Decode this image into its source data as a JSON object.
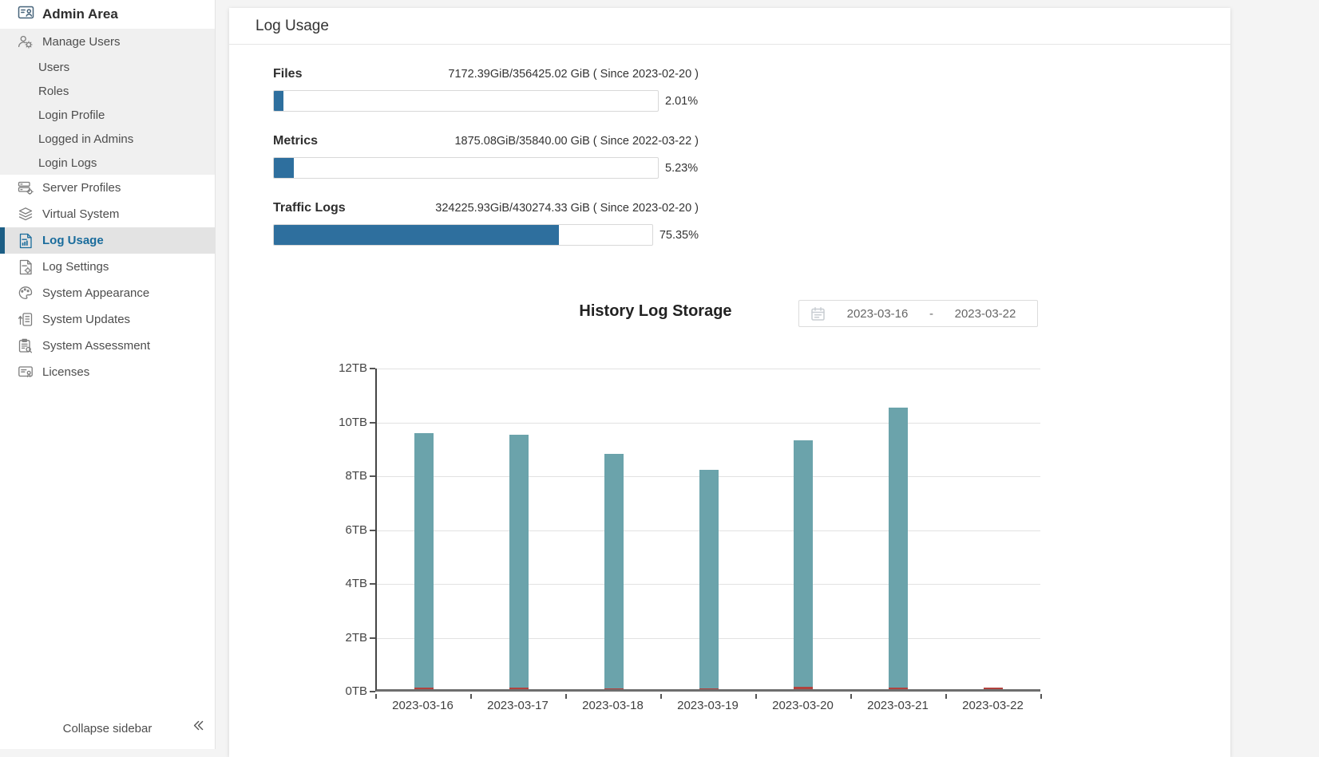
{
  "sidebar": {
    "title": "Admin Area",
    "items": [
      {
        "id": "manage-users",
        "label": "Manage Users",
        "icon": "manage-users-icon",
        "type": "group"
      },
      {
        "id": "users",
        "label": "Users",
        "type": "subitem"
      },
      {
        "id": "roles",
        "label": "Roles",
        "type": "subitem"
      },
      {
        "id": "login-profile",
        "label": "Login Profile",
        "type": "subitem"
      },
      {
        "id": "logged-in-admins",
        "label": "Logged in Admins",
        "type": "subitem"
      },
      {
        "id": "login-logs",
        "label": "Login Logs",
        "type": "subitem"
      },
      {
        "id": "server-profiles",
        "label": "Server Profiles",
        "icon": "server-profiles-icon"
      },
      {
        "id": "virtual-system",
        "label": "Virtual System",
        "icon": "virtual-system-icon"
      },
      {
        "id": "log-usage",
        "label": "Log Usage",
        "icon": "log-usage-icon",
        "active": true
      },
      {
        "id": "log-settings",
        "label": "Log Settings",
        "icon": "log-settings-icon"
      },
      {
        "id": "system-appearance",
        "label": "System Appearance",
        "icon": "system-appearance-icon"
      },
      {
        "id": "system-updates",
        "label": "System Updates",
        "icon": "system-updates-icon"
      },
      {
        "id": "system-assessment",
        "label": "System Assessment",
        "icon": "system-assessment-icon"
      },
      {
        "id": "licenses",
        "label": "Licenses",
        "icon": "licenses-icon"
      }
    ],
    "collapse_label": "Collapse sidebar"
  },
  "header": {
    "title": "Log Usage"
  },
  "meters": [
    {
      "label": "Files",
      "detail": "7172.39GiB/356425.02 GiB ( Since 2023-02-20 )",
      "percent": 2.01,
      "percent_label": "2.01%"
    },
    {
      "label": "Metrics",
      "detail": "1875.08GiB/35840.00 GiB ( Since 2022-03-22 )",
      "percent": 5.23,
      "percent_label": "5.23%"
    },
    {
      "label": "Traffic Logs",
      "detail": "324225.93GiB/430274.33 GiB ( Since 2023-02-20 )",
      "percent": 75.35,
      "percent_label": "75.35%"
    }
  ],
  "history": {
    "title": "History Log Storage",
    "date_from": "2023-03-16",
    "separator": "-",
    "date_to": "2023-03-22"
  },
  "chart_data": {
    "type": "bar",
    "stacked": true,
    "title": "History Log Storage",
    "categories": [
      "2023-03-16",
      "2023-03-17",
      "2023-03-18",
      "2023-03-19",
      "2023-03-20",
      "2023-03-21",
      "2023-03-22"
    ],
    "series": [
      {
        "name": "log-storage-teal",
        "color": "#6ba3ab",
        "values": [
          9.45,
          9.4,
          8.7,
          8.1,
          9.15,
          10.4,
          0
        ]
      },
      {
        "name": "log-storage-red",
        "color": "#b2423e",
        "values": [
          0.05,
          0.06,
          0.04,
          0.03,
          0.1,
          0.07,
          0.05
        ]
      }
    ],
    "ytick_labels": [
      "0TB",
      "2TB",
      "4TB",
      "6TB",
      "8TB",
      "10TB",
      "12TB"
    ],
    "ylim": [
      0,
      12
    ],
    "grid": true,
    "legend": false
  },
  "colors": {
    "progress_fill": "#2e6f9e",
    "active_nav_text": "#1a6c9c",
    "active_nav_bar": "#1c5e85",
    "bar_teal": "#6ba3ab",
    "bar_red": "#b2423e"
  }
}
